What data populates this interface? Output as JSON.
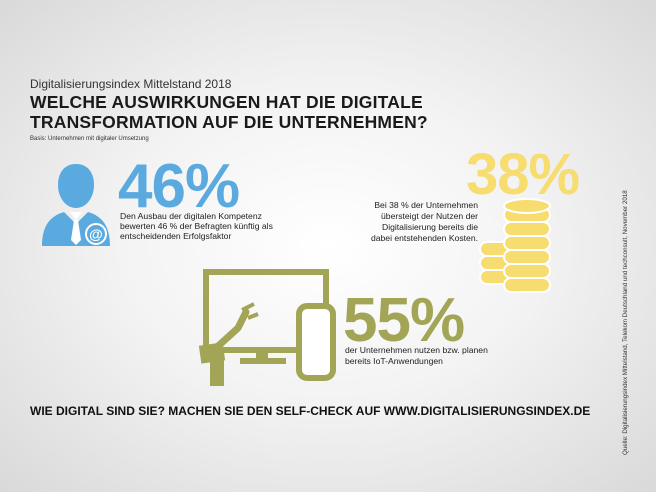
{
  "header": {
    "supertitle": "Digitalisierungsindex Mittelstand 2018",
    "title": "WELCHE AUSWIRKUNGEN HAT DIE DIGITALE TRANSFORMATION AUF DIE UNTERNEHMEN?",
    "basis": "Basis: Unternehmen mit digitaler Umsetzung"
  },
  "stats": [
    {
      "value": "46%",
      "text": "Den Ausbau der digitalen Kompetenz bewerten 46 % der Befragten künftig als entscheidenden Erfolgsfaktor",
      "icon": "businessman-icon",
      "color": "#5aaae0"
    },
    {
      "value": "38%",
      "text": "Bei 38 % der Unternehmen übersteigt der Nutzen der Digitalisierung bereits die dabei entstehenden Kosten.",
      "icon": "coins-icon",
      "color": "#f7dc6f"
    },
    {
      "value": "55%",
      "text": "der Unternehmen nutzen bzw. planen bereits IoT-Anwendungen",
      "icon": "iot-devices-icon",
      "color": "#a2a555"
    }
  ],
  "footer": {
    "cta": "WIE DIGITAL SIND SIE? MACHEN SIE DEN SELF-CHECK AUF WWW.DIGITALISIERUNGSINDEX.DE",
    "source": "Quelle: Digitalisierungsindex Mittelstand, Telekom Deutschland und techconsult, November 2018"
  }
}
